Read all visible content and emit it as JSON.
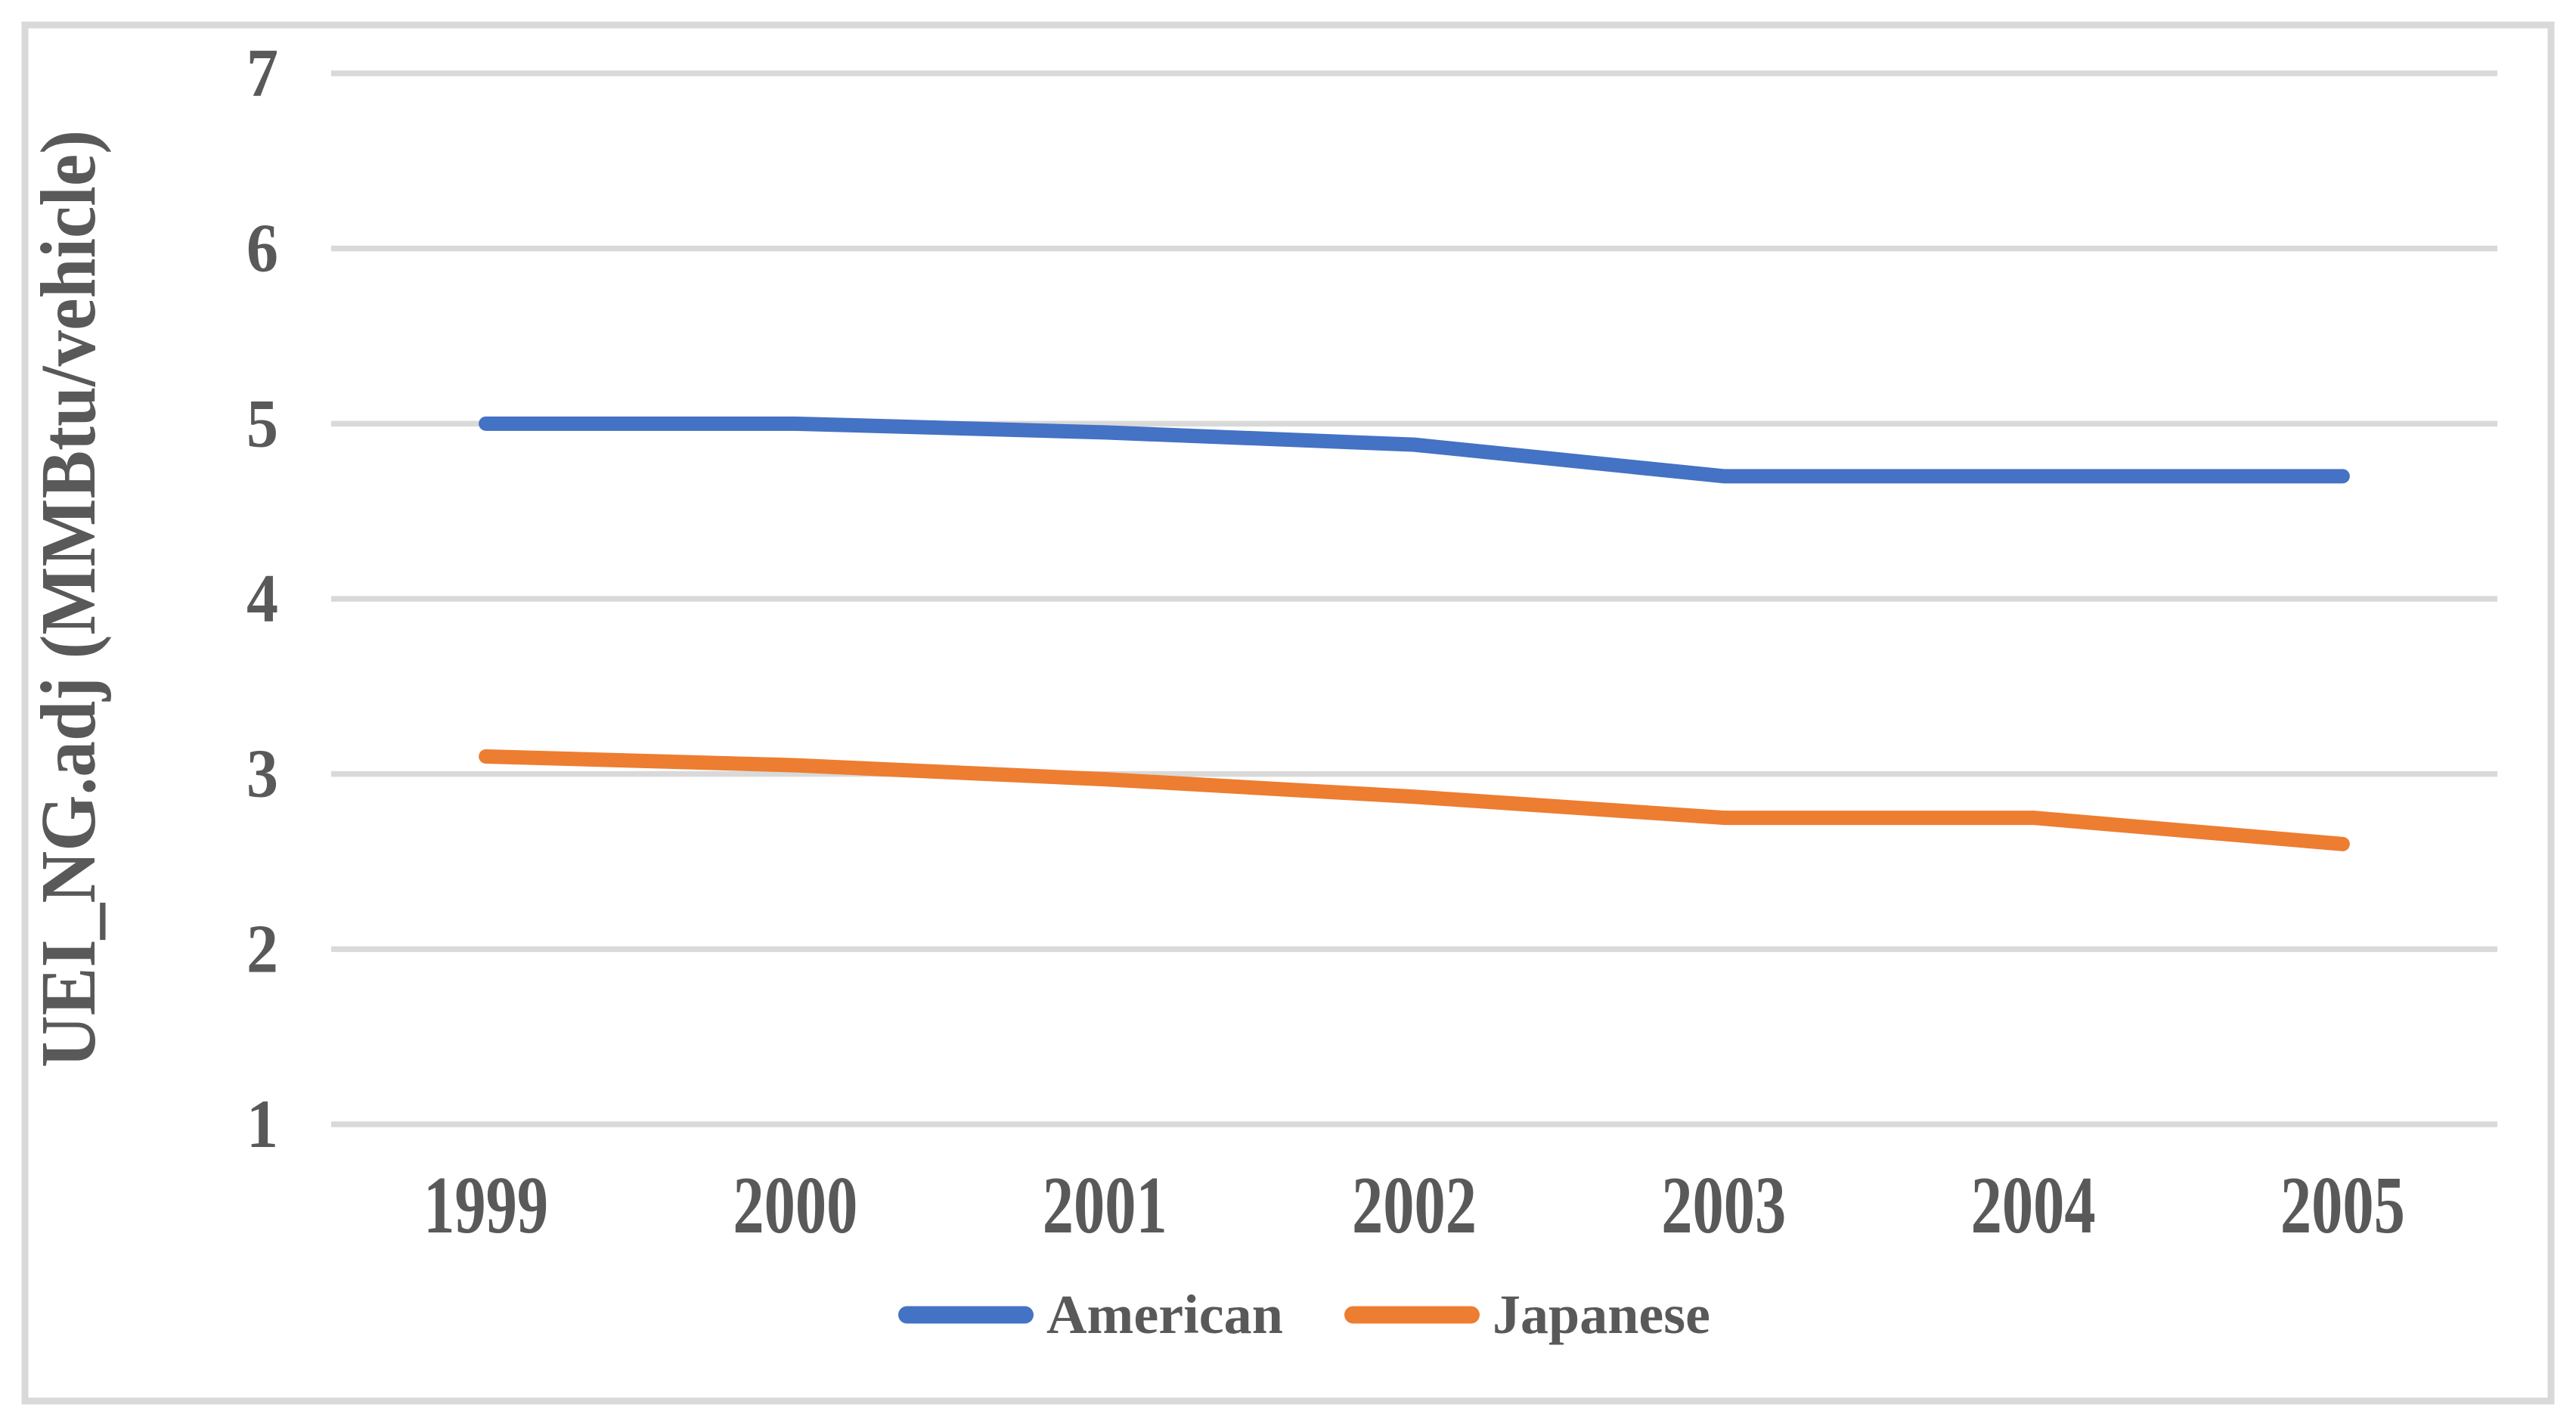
{
  "chart_data": {
    "type": "line",
    "title": "",
    "xlabel": "",
    "ylabel": "UEI_NG.adj (MMBtu/vehicle)",
    "categories": [
      "1999",
      "2000",
      "2001",
      "2002",
      "2003",
      "2004",
      "2005"
    ],
    "series": [
      {
        "name": "American",
        "color": "#4472C4",
        "values": [
          5.0,
          5.0,
          4.95,
          4.88,
          4.7,
          4.7,
          4.7
        ]
      },
      {
        "name": "Japanese",
        "color": "#ED7D31",
        "values": [
          3.1,
          3.05,
          2.97,
          2.87,
          2.75,
          2.75,
          2.6
        ]
      }
    ],
    "y_tick_labels": [
      "1",
      "2",
      "3",
      "4",
      "5",
      "6",
      "7"
    ],
    "ylim": [
      1,
      7
    ],
    "grid": "horizontal",
    "legend_position": "bottom",
    "colors": {
      "grid": "#D9D9D9",
      "text": "#595959",
      "border": "#D9D9D9",
      "background": "#FFFFFF"
    }
  }
}
